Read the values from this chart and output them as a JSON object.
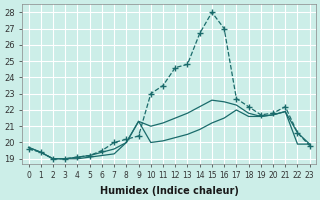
{
  "xlabel": "Humidex (Indice chaleur)",
  "ylabel": "",
  "bg_color": "#cceee8",
  "line_color": "#1a6b6b",
  "grid_color": "#ffffff",
  "xlim": [
    -0.5,
    23.5
  ],
  "ylim": [
    18.7,
    28.5
  ],
  "yticks": [
    19,
    20,
    21,
    22,
    23,
    24,
    25,
    26,
    27,
    28
  ],
  "xticks": [
    0,
    1,
    2,
    3,
    4,
    5,
    6,
    7,
    8,
    9,
    10,
    11,
    12,
    13,
    14,
    15,
    16,
    17,
    18,
    19,
    20,
    21,
    22,
    23
  ],
  "series": [
    {
      "x": [
        0,
        1,
        2,
        3,
        4,
        5,
        6,
        7,
        8,
        9,
        10,
        11,
        12,
        13,
        14,
        15,
        16,
        17,
        18,
        19,
        20,
        21,
        22,
        23
      ],
      "y": [
        19.7,
        19.4,
        19.0,
        19.0,
        19.0,
        19.1,
        19.2,
        19.3,
        20.0,
        21.3,
        20.0,
        20.1,
        20.3,
        20.5,
        20.8,
        21.2,
        21.5,
        22.0,
        21.6,
        21.6,
        21.7,
        21.9,
        19.9,
        19.9
      ],
      "has_marker": false
    },
    {
      "x": [
        0,
        1,
        2,
        3,
        4,
        5,
        6,
        7,
        8,
        9,
        10,
        11,
        12,
        13,
        14,
        15,
        16,
        17,
        18,
        19,
        20,
        21,
        22,
        23
      ],
      "y": [
        19.7,
        19.4,
        19.0,
        19.0,
        19.1,
        19.2,
        19.4,
        19.6,
        20.0,
        21.3,
        21.0,
        21.2,
        21.5,
        21.8,
        22.2,
        22.6,
        22.5,
        22.3,
        21.8,
        21.6,
        21.7,
        21.9,
        20.6,
        19.9
      ],
      "has_marker": false
    },
    {
      "x": [
        0,
        1,
        2,
        3,
        4,
        5,
        6,
        7,
        8,
        9,
        10,
        11,
        12,
        13,
        14,
        15,
        16,
        17,
        18,
        19,
        20,
        21,
        22,
        23
      ],
      "y": [
        19.6,
        19.4,
        19.0,
        19.0,
        19.1,
        19.2,
        19.5,
        20.0,
        20.2,
        20.4,
        23.0,
        23.5,
        24.6,
        24.8,
        26.7,
        28.0,
        27.0,
        22.7,
        22.2,
        21.7,
        21.8,
        22.2,
        20.6,
        19.8
      ],
      "has_marker": true
    }
  ]
}
